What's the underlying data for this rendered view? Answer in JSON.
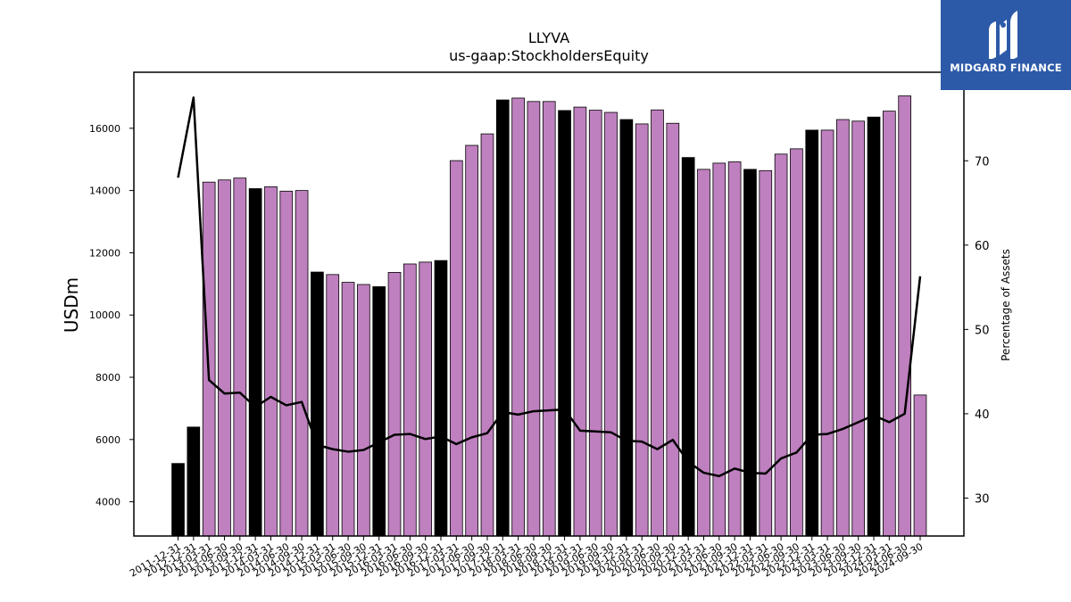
{
  "chart_data": {
    "type": "bar",
    "title": "LLYVA",
    "subtitle": "us-gaap:StockholdersEquity",
    "ylabel": "USDm",
    "y2label": "Percentage of Assets",
    "ylim": [
      2900,
      17800
    ],
    "y2lim": [
      25.5,
      80.5
    ],
    "yticks": [
      4000,
      6000,
      8000,
      10000,
      12000,
      14000,
      16000
    ],
    "y2ticks": [
      30,
      40,
      50,
      60,
      70
    ],
    "colors": {
      "annual": "#000000",
      "quarterly": "#bf80bf",
      "line": "#000000"
    },
    "categories": [
      "2011-12-31",
      "2012-12-31",
      "2013-03-31",
      "2013-06-30",
      "2013-09-30",
      "2013-12-31",
      "2014-03-31",
      "2014-06-30",
      "2014-09-30",
      "2014-12-31",
      "2015-03-31",
      "2015-06-30",
      "2015-09-30",
      "2015-12-31",
      "2016-03-31",
      "2016-06-30",
      "2016-09-30",
      "2016-12-31",
      "2017-03-31",
      "2017-06-30",
      "2017-09-30",
      "2017-12-31",
      "2018-03-31",
      "2018-06-30",
      "2018-09-30",
      "2018-12-31",
      "2019-03-31",
      "2019-06-30",
      "2019-09-30",
      "2019-12-31",
      "2020-03-31",
      "2020-06-30",
      "2020-09-30",
      "2020-12-31",
      "2021-03-31",
      "2021-06-30",
      "2021-09-30",
      "2021-12-31",
      "2022-03-31",
      "2022-06-30",
      "2022-09-30",
      "2022-12-31",
      "2023-03-31",
      "2023-06-30",
      "2023-09-30",
      "2023-12-31",
      "2024-03-31",
      "2024-06-30",
      "2024-09-30"
    ],
    "annual": [
      true,
      true,
      false,
      false,
      false,
      true,
      false,
      false,
      false,
      true,
      false,
      false,
      false,
      true,
      false,
      false,
      false,
      true,
      false,
      false,
      false,
      true,
      false,
      false,
      false,
      true,
      false,
      false,
      false,
      true,
      false,
      false,
      false,
      true,
      false,
      false,
      false,
      true,
      false,
      false,
      false,
      true,
      false,
      false,
      false,
      true,
      false,
      false,
      false
    ],
    "values": [
      5230,
      6400,
      14270,
      14340,
      14400,
      14060,
      14120,
      13980,
      14000,
      11380,
      11300,
      11050,
      10980,
      10910,
      11370,
      11640,
      11700,
      11750,
      14960,
      15450,
      15820,
      16910,
      16970,
      16860,
      16860,
      16570,
      16680,
      16580,
      16510,
      16280,
      16140,
      16590,
      16160,
      15060,
      14680,
      14880,
      14920,
      14680,
      14640,
      15170,
      15340,
      15940,
      15940,
      16280,
      16230,
      16360,
      16550,
      17040,
      7430
    ],
    "line_values": [
      68.0,
      77.5,
      44.0,
      42.4,
      42.5,
      40.8,
      42.0,
      41.0,
      41.4,
      36.3,
      35.8,
      35.5,
      35.7,
      36.6,
      37.5,
      37.6,
      37.0,
      37.3,
      36.4,
      37.2,
      37.7,
      40.2,
      39.9,
      40.3,
      40.4,
      40.5,
      38.0,
      37.9,
      37.8,
      36.8,
      36.7,
      35.8,
      36.9,
      34.3,
      33.0,
      32.6,
      33.5,
      33.0,
      32.9,
      34.7,
      35.4,
      37.5,
      37.6,
      38.2,
      39.0,
      39.8,
      39.0,
      40.0,
      56.3
    ]
  },
  "logo": {
    "text": "MIDGARD FINANCE"
  }
}
